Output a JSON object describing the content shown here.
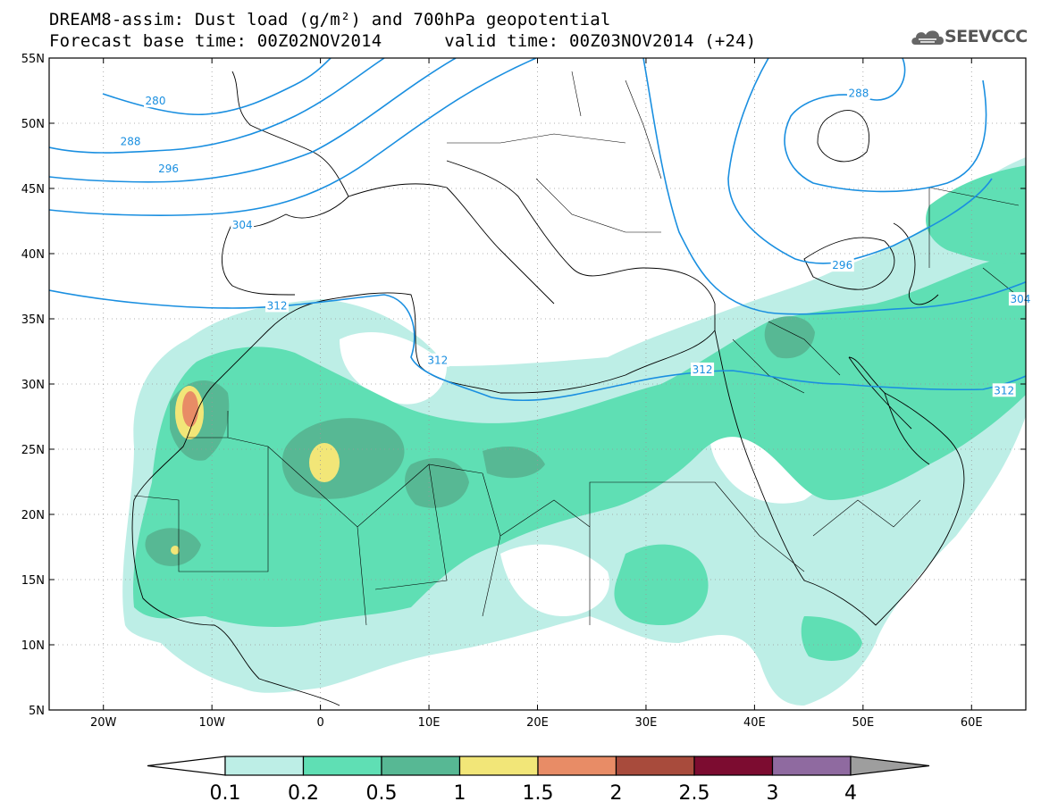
{
  "title_line1": "DREAM8-assim: Dust load (g/m²) and 700hPa geopotential",
  "title_line2": "Forecast base time: 00Z02NOV2014      valid time: 00Z03NOV2014 (+24)",
  "logo_text": "SEEVCCC",
  "map": {
    "lon_range": [
      -25,
      65
    ],
    "lat_range": [
      5,
      55
    ],
    "lon_ticks": [
      {
        "value": -20,
        "label": "20W"
      },
      {
        "value": -10,
        "label": "10W"
      },
      {
        "value": 0,
        "label": "0"
      },
      {
        "value": 10,
        "label": "10E"
      },
      {
        "value": 20,
        "label": "20E"
      },
      {
        "value": 30,
        "label": "30E"
      },
      {
        "value": 40,
        "label": "40E"
      },
      {
        "value": 50,
        "label": "50E"
      },
      {
        "value": 60,
        "label": "60E"
      }
    ],
    "lat_ticks": [
      {
        "value": 55,
        "label": "55N"
      },
      {
        "value": 50,
        "label": "50N"
      },
      {
        "value": 45,
        "label": "45N"
      },
      {
        "value": 40,
        "label": "40N"
      },
      {
        "value": 35,
        "label": "35N"
      },
      {
        "value": 30,
        "label": "30N"
      },
      {
        "value": 25,
        "label": "25N"
      },
      {
        "value": 20,
        "label": "20N"
      },
      {
        "value": 15,
        "label": "15N"
      },
      {
        "value": 10,
        "label": "10N"
      },
      {
        "value": 5,
        "label": "5N"
      }
    ],
    "contour_labels": [
      {
        "text": "280",
        "lon": -15.2,
        "lat": 51.7
      },
      {
        "text": "288",
        "lon": -17.5,
        "lat": 48.6
      },
      {
        "text": "296",
        "lon": -14.0,
        "lat": 46.5
      },
      {
        "text": "304",
        "lon": -7.2,
        "lat": 42.2
      },
      {
        "text": "312",
        "lon": -4.0,
        "lat": 36.0
      },
      {
        "text": "312",
        "lon": 10.8,
        "lat": 31.8
      },
      {
        "text": "312",
        "lon": 35.2,
        "lat": 31.1
      },
      {
        "text": "312",
        "lon": 63.0,
        "lat": 29.5
      },
      {
        "text": "304",
        "lon": 64.5,
        "lat": 36.5
      },
      {
        "text": "296",
        "lon": 48.1,
        "lat": 39.1
      },
      {
        "text": "288",
        "lon": 49.6,
        "lat": 52.3
      }
    ]
  },
  "colorbar": {
    "labels": [
      "0.1",
      "0.2",
      "0.5",
      "1",
      "1.5",
      "2",
      "2.5",
      "3",
      "4"
    ],
    "colors": [
      "#ffffff",
      "#bdeee6",
      "#5fdfb4",
      "#57b894",
      "#f2e678",
      "#e88c66",
      "#a84b3c",
      "#7c0c30",
      "#8f6aa0",
      "#9e9e9e"
    ]
  }
}
